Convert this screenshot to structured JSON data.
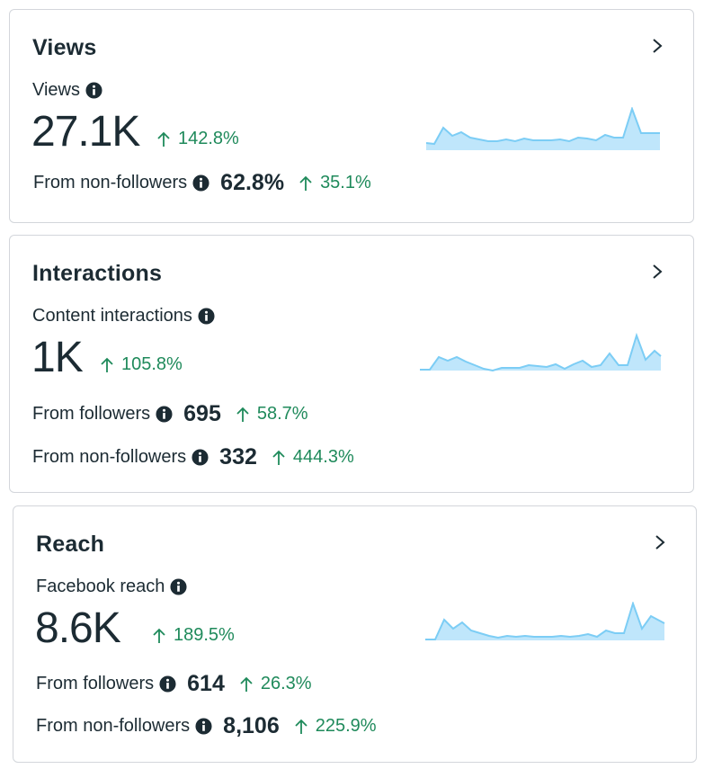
{
  "cards": [
    {
      "title": "Views",
      "metric_label": "Views",
      "metric_value": "27.1K",
      "metric_delta": "142.8%",
      "rows": [
        {
          "label": "From non-followers",
          "value": "62.8%",
          "delta": "35.1%"
        }
      ]
    },
    {
      "title": "Interactions",
      "metric_label": "Content interactions",
      "metric_value": "1K",
      "metric_delta": "105.8%",
      "rows": [
        {
          "label": "From followers",
          "value": "695",
          "delta": "58.7%"
        },
        {
          "label": "From non-followers",
          "value": "332",
          "delta": "444.3%"
        }
      ]
    },
    {
      "title": "Reach",
      "metric_label": "Facebook reach",
      "metric_value": "8.6K",
      "metric_delta": "189.5%",
      "rows": [
        {
          "label": "From followers",
          "value": "614",
          "delta": "26.3%"
        },
        {
          "label": "From non-followers",
          "value": "8,106",
          "delta": "225.9%"
        }
      ]
    }
  ],
  "colors": {
    "text": "#1c2b33",
    "positive": "#1f8a5b",
    "spark_line": "#7ccdf5",
    "spark_fill": "#bfe6fb",
    "border": "#d3d6db"
  },
  "icons": [
    "chevron-right-icon",
    "info-icon",
    "arrow-up-icon"
  ]
}
